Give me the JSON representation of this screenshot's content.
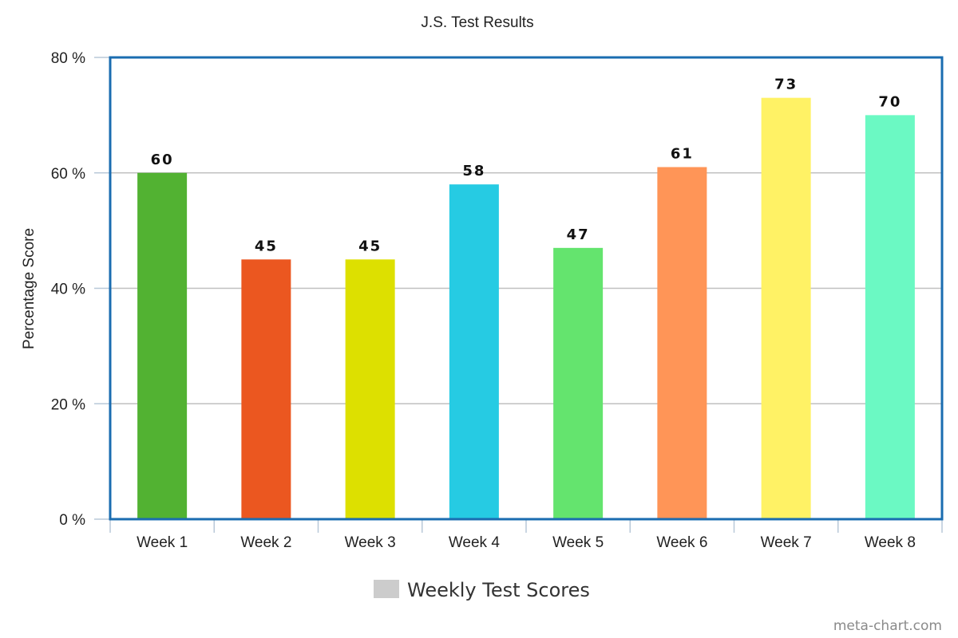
{
  "chart_data": {
    "type": "bar",
    "title": "J.S. Test Results",
    "xlabel": "",
    "ylabel": "Percentage Score",
    "ylim": [
      0,
      80
    ],
    "ytick_values": [
      0,
      20,
      40,
      60,
      80
    ],
    "ytick_labels": [
      "0 %",
      "20 %",
      "40 %",
      "60 %",
      "80 %"
    ],
    "categories": [
      "Week 1",
      "Week 2",
      "Week 3",
      "Week 4",
      "Week 5",
      "Week 6",
      "Week 7",
      "Week 8"
    ],
    "series": [
      {
        "name": "Weekly Test Scores",
        "values": [
          60,
          45,
          45,
          58,
          47,
          61,
          73,
          70
        ],
        "data_labels": [
          "60",
          "45",
          "45",
          "58",
          "47",
          "61",
          "73",
          "70"
        ],
        "colors": [
          "#52b232",
          "#eb5720",
          "#dde000",
          "#26cbe3",
          "#64e46e",
          "#ff9557",
          "#fff265",
          "#6bf9c3"
        ]
      }
    ],
    "legend_color": "#cccccc",
    "legend_position": "bottom-center",
    "grid": true,
    "frame_color": "#1a6cb0"
  },
  "credit": "meta-chart.com"
}
